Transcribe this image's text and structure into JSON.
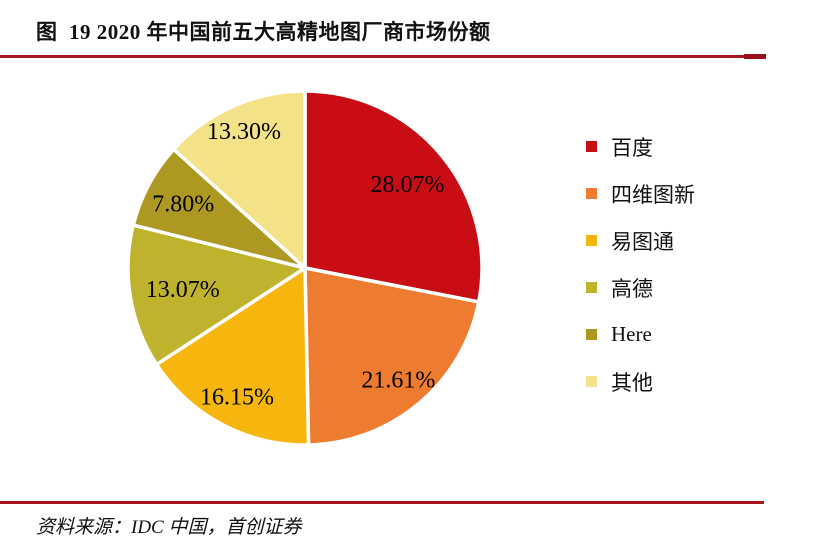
{
  "figure": {
    "title": "图  19 2020 年中国前五大高精地图厂商市场份额",
    "source": "资料来源：IDC 中国，首创证券",
    "accent_line_color": "#A8151D"
  },
  "chart_data": {
    "type": "pie",
    "title": "2020 年中国前五大高精地图厂商市场份额",
    "categories": [
      "百度",
      "四维图新",
      "易图通",
      "高德",
      "Here",
      "其他"
    ],
    "values": [
      28.07,
      21.61,
      16.15,
      13.07,
      7.8,
      13.3
    ],
    "labels": [
      "28.07%",
      "21.61%",
      "16.15%",
      "13.07%",
      "7.80%",
      "13.30%"
    ],
    "colors": [
      "#C80E14",
      "#ED7C30",
      "#F7B60D",
      "#BFB22D",
      "#AD9821",
      "#F3E288"
    ],
    "start_angle": "top",
    "direction": "clockwise",
    "legend_position": "right",
    "slice_separator_color": "#FFFFFF",
    "label_color": "#000000"
  }
}
